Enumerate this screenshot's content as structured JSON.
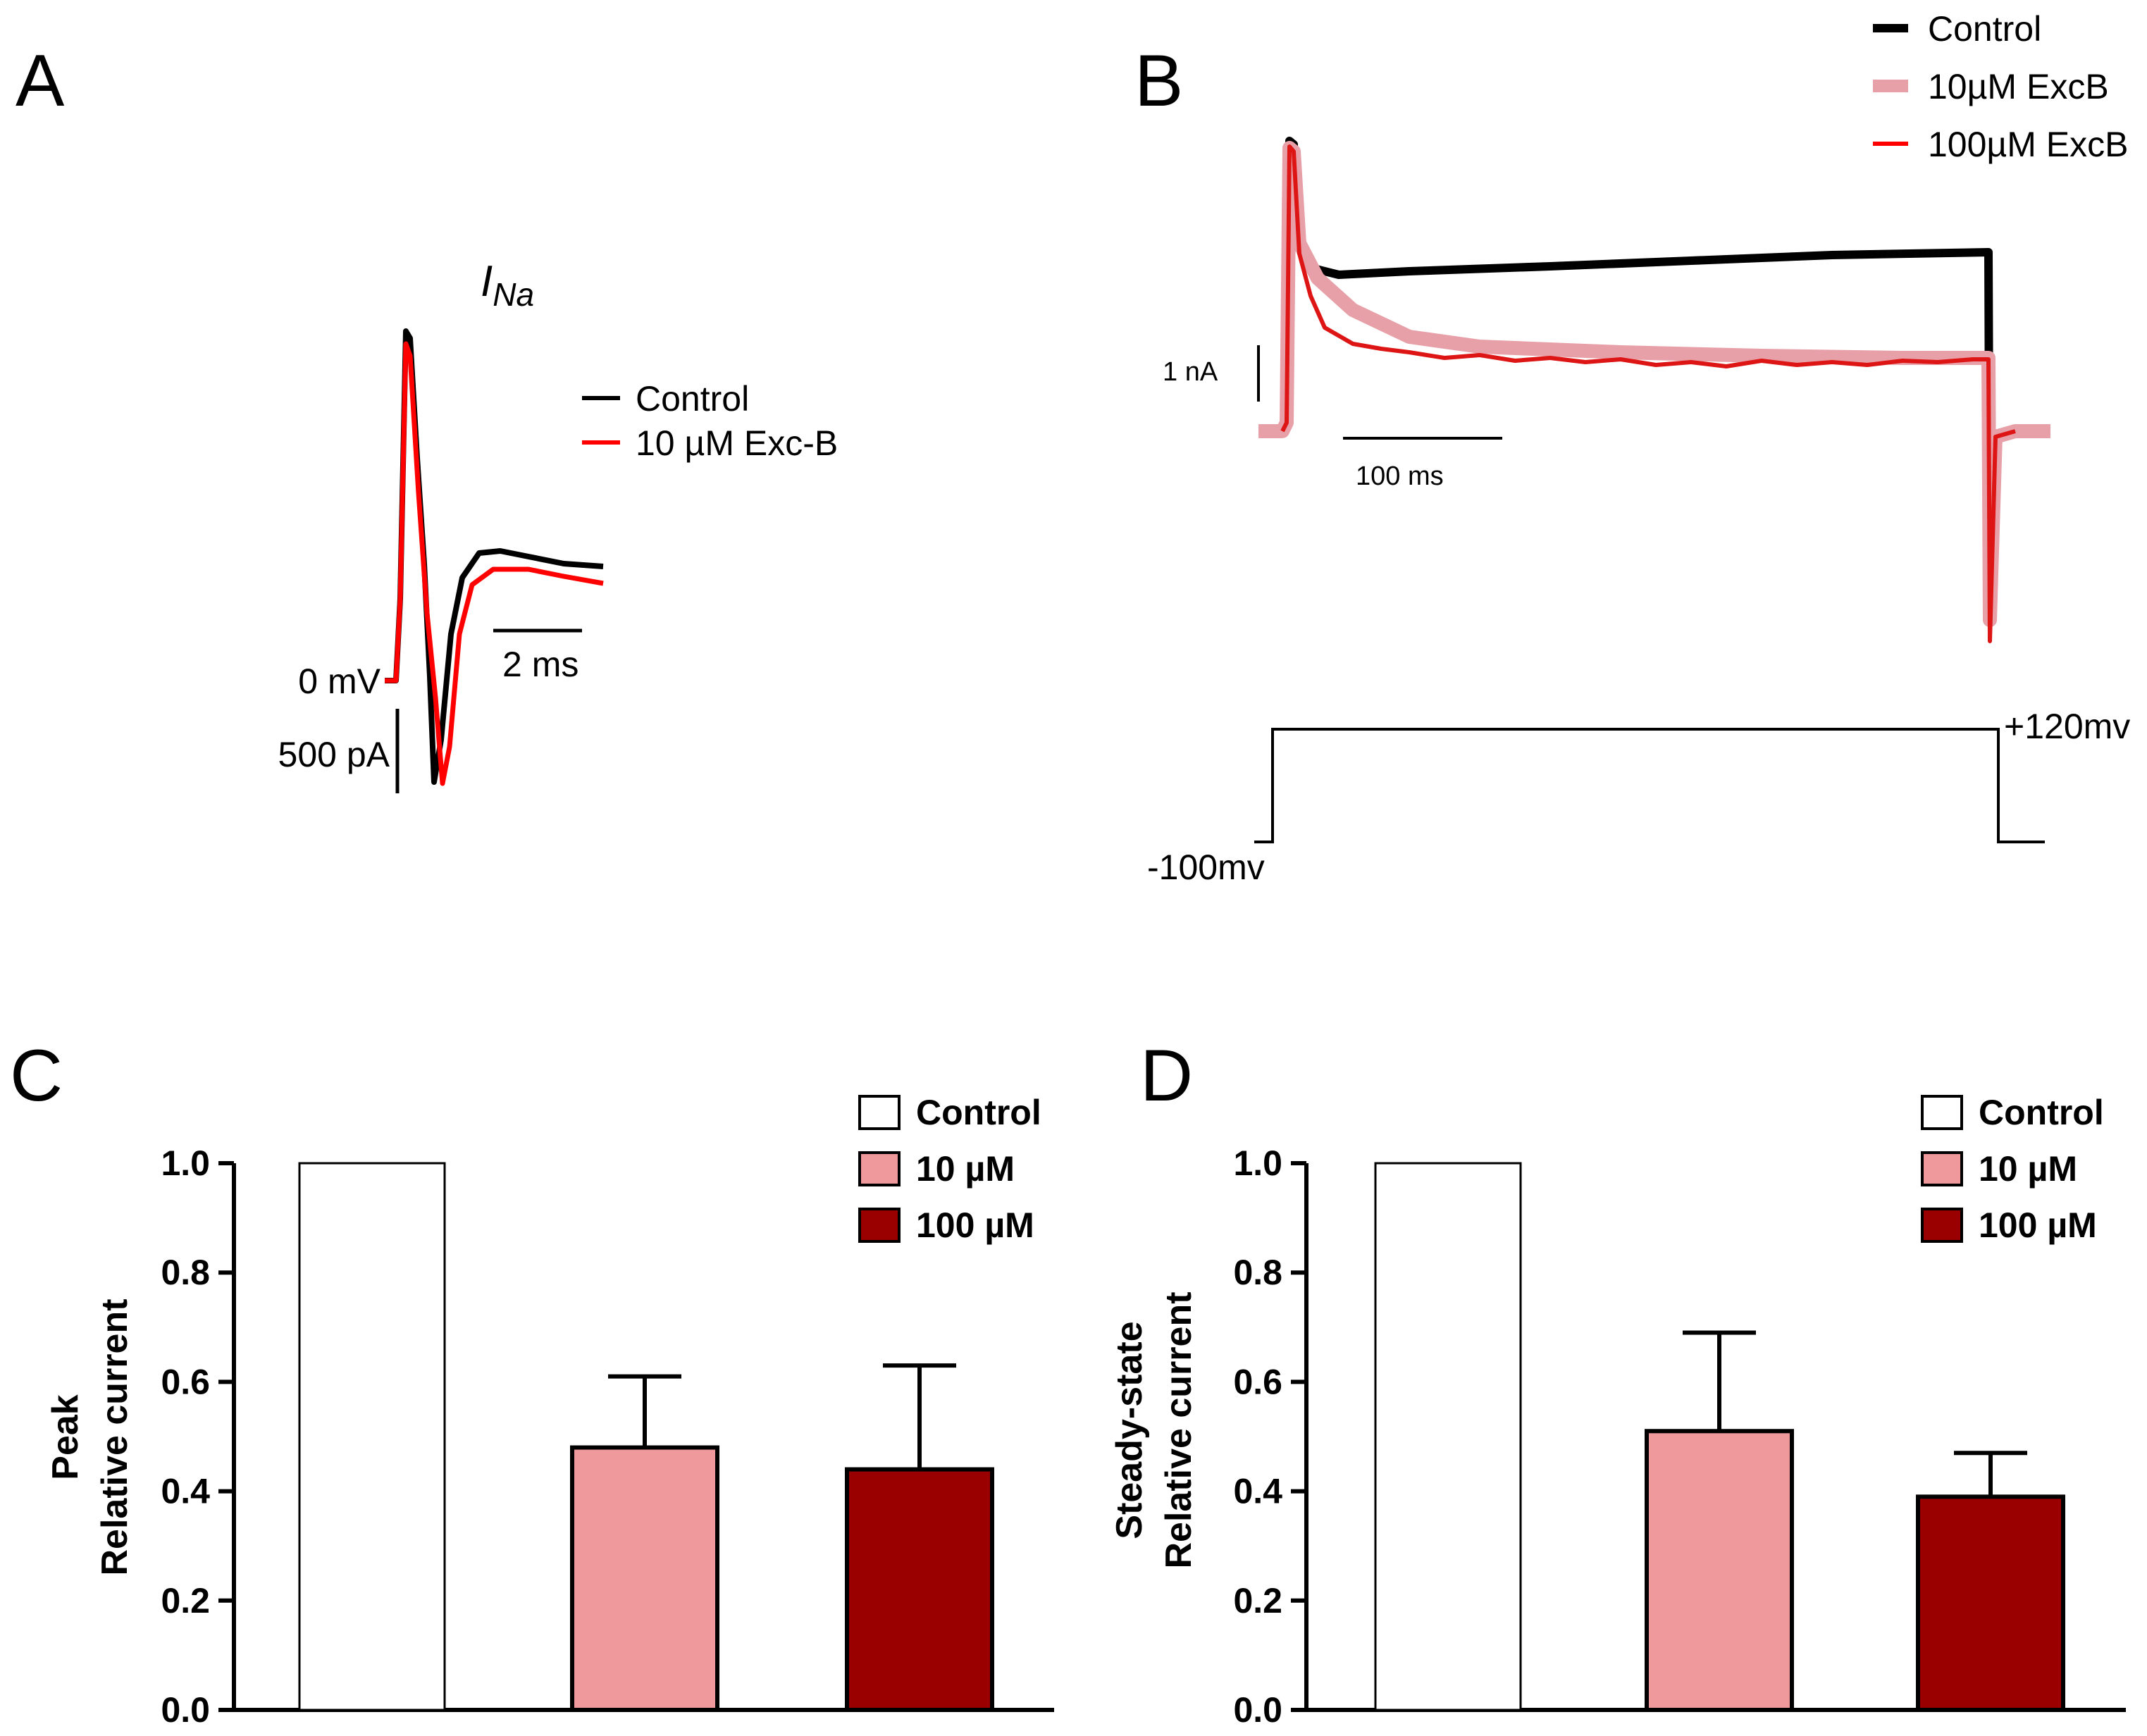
{
  "panel_a": {
    "letter": "A",
    "title_main": "I",
    "title_sub": "Na",
    "legend": [
      {
        "label": "Control",
        "color": "#000000"
      },
      {
        "label": "10 µM Exc-B",
        "color": "#ff0000"
      }
    ],
    "zero_label": "0 mV",
    "scale_current": "500 pA",
    "scale_time": "2 ms"
  },
  "panel_b": {
    "letter": "B",
    "legend": [
      {
        "label": "Control",
        "color": "#000000"
      },
      {
        "label": "10µM ExcB",
        "color": "#e8a0a8"
      },
      {
        "label": "100µM ExcB",
        "color": "#ff0000"
      }
    ],
    "scale_current": "1 nA",
    "scale_time": "100 ms",
    "protocol_high": "+120mv",
    "protocol_low": "-100mv"
  },
  "chart_data": [
    {
      "panel": "C",
      "type": "bar",
      "categories": [
        "Control",
        "10 µM",
        "100 µM"
      ],
      "values": [
        1.0,
        0.48,
        0.44
      ],
      "errors": [
        0,
        0.13,
        0.19
      ],
      "colors": [
        "#ffffff",
        "#f0999c",
        "#9b0000"
      ],
      "ylabel_line1": "Peak",
      "ylabel_line2": "Relative current",
      "ylim": [
        0,
        1.0
      ],
      "yticks": [
        "0.0",
        "0.2",
        "0.4",
        "0.6",
        "0.8",
        "1.0"
      ],
      "legend": [
        "Control",
        "10 µM",
        "100 µM"
      ]
    },
    {
      "panel": "D",
      "type": "bar",
      "categories": [
        "Control",
        "10 µM",
        "100 µM"
      ],
      "values": [
        1.0,
        0.51,
        0.39
      ],
      "errors": [
        0,
        0.18,
        0.08
      ],
      "colors": [
        "#ffffff",
        "#f0999c",
        "#9b0000"
      ],
      "ylabel_line1": "Steady-state",
      "ylabel_line2": "Relative current",
      "ylim": [
        0,
        1.0
      ],
      "yticks": [
        "0.0",
        "0.2",
        "0.4",
        "0.6",
        "0.8",
        "1.0"
      ],
      "legend": [
        "Control",
        "10 µM",
        "100 µM"
      ]
    }
  ]
}
